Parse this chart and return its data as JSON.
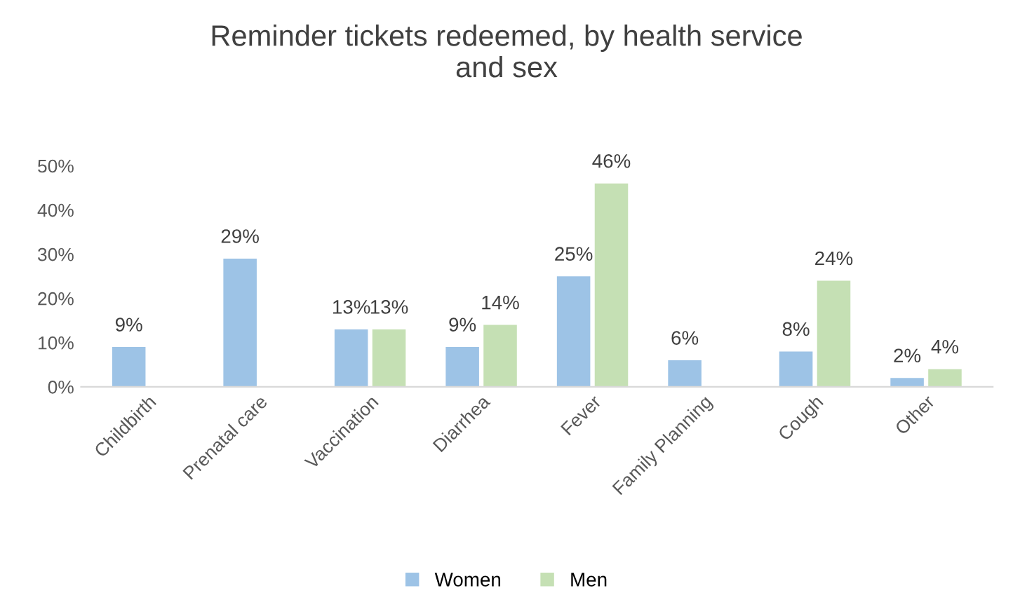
{
  "chart_data": {
    "type": "bar",
    "title": "Reminder tickets redeemed, by health service\nand sex",
    "categories": [
      "Childbirth",
      "Prenatal care",
      "Vaccination",
      "Diarrhea",
      "Fever",
      "Family Planning",
      "Cough",
      "Other"
    ],
    "series": [
      {
        "name": "Women",
        "color": "#9dc3e6",
        "values": [
          9,
          29,
          13,
          9,
          25,
          6,
          8,
          2
        ],
        "value_labels": [
          "9%",
          "29%",
          "13%",
          "9%",
          "25%",
          "6%",
          "8%",
          "2%"
        ]
      },
      {
        "name": "Men",
        "color": "#c5e0b4",
        "values": [
          null,
          null,
          13,
          14,
          46,
          null,
          24,
          4
        ],
        "value_labels": [
          null,
          null,
          "13%",
          "14%",
          "46%",
          null,
          "24%",
          "4%"
        ]
      }
    ],
    "ylim": [
      0,
      50
    ],
    "yticks": [
      {
        "value": 0,
        "label": "0%"
      },
      {
        "value": 10,
        "label": "10%"
      },
      {
        "value": 20,
        "label": "20%"
      },
      {
        "value": 30,
        "label": "30%"
      },
      {
        "value": 40,
        "label": "40%"
      },
      {
        "value": 50,
        "label": "50%"
      }
    ],
    "grid": false,
    "legend": "bottom"
  }
}
